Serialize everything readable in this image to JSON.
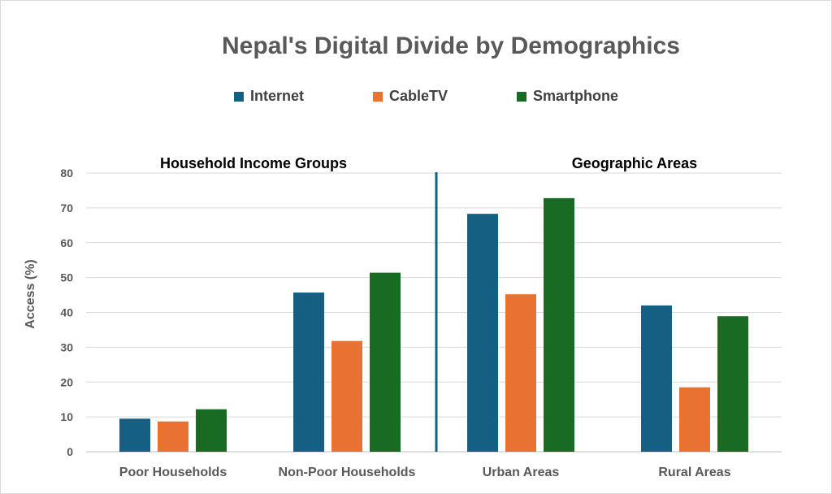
{
  "chart_data": {
    "type": "bar",
    "title": "Nepal's Digital Divide by Demographics",
    "ylabel": "Access (%)",
    "xlabel": "",
    "ylim": [
      0,
      80
    ],
    "yticks": [
      0,
      10,
      20,
      30,
      40,
      50,
      60,
      70,
      80
    ],
    "grid": true,
    "legend_position": "top",
    "categories": [
      "Poor Households",
      "Non-Poor Households",
      "Urban Areas",
      "Rural Areas"
    ],
    "groups": [
      {
        "label": "Household Income Groups",
        "categories": [
          "Poor Households",
          "Non-Poor Households"
        ]
      },
      {
        "label": "Geographic Areas",
        "categories": [
          "Urban Areas",
          "Rural Areas"
        ]
      }
    ],
    "series": [
      {
        "name": "Internet",
        "color": "#156082",
        "values": [
          9.5,
          45.7,
          68.3,
          42.0
        ]
      },
      {
        "name": "CableTV",
        "color": "#E97132",
        "values": [
          8.7,
          31.8,
          45.2,
          18.5
        ]
      },
      {
        "name": "Smartphone",
        "color": "#196B24",
        "values": [
          12.2,
          51.4,
          72.8,
          38.9
        ]
      }
    ]
  }
}
